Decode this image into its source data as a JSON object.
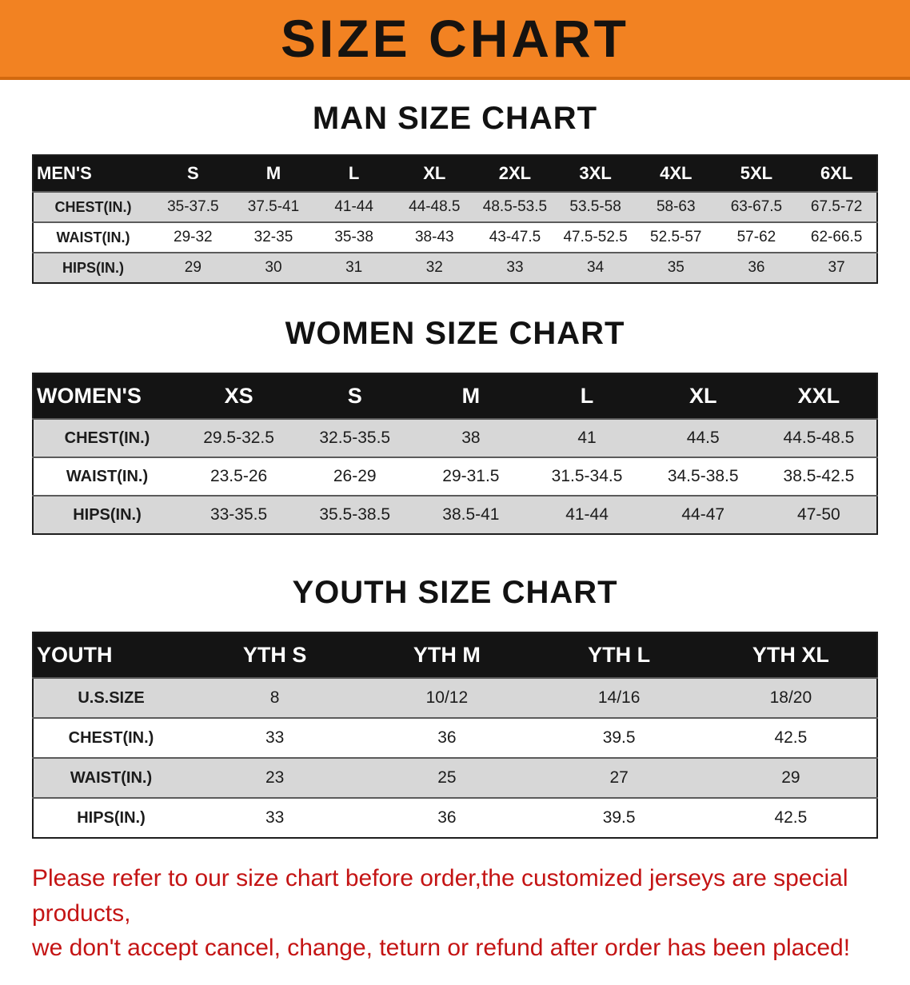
{
  "banner": {
    "title": "SIZE CHART"
  },
  "colors": {
    "banner_orange": "#f28222",
    "table_header_black": "#141414",
    "row_gray": "#d7d7d7",
    "note_red": "#c41414"
  },
  "men": {
    "heading": "MAN SIZE CHART",
    "header": [
      "MEN'S",
      "S",
      "M",
      "L",
      "XL",
      "2XL",
      "3XL",
      "4XL",
      "5XL",
      "6XL"
    ],
    "rows": [
      {
        "label": "CHEST(IN.)",
        "values": [
          "35-37.5",
          "37.5-41",
          "41-44",
          "44-48.5",
          "48.5-53.5",
          "53.5-58",
          "58-63",
          "63-67.5",
          "67.5-72"
        ]
      },
      {
        "label": "WAIST(IN.)",
        "values": [
          "29-32",
          "32-35",
          "35-38",
          "38-43",
          "43-47.5",
          "47.5-52.5",
          "52.5-57",
          "57-62",
          "62-66.5"
        ]
      },
      {
        "label": "HIPS(IN.)",
        "values": [
          "29",
          "30",
          "31",
          "32",
          "33",
          "34",
          "35",
          "36",
          "37"
        ]
      }
    ]
  },
  "women": {
    "heading": "WOMEN SIZE CHART",
    "header": [
      "WOMEN'S",
      "XS",
      "S",
      "M",
      "L",
      "XL",
      "XXL"
    ],
    "rows": [
      {
        "label": "CHEST(IN.)",
        "values": [
          "29.5-32.5",
          "32.5-35.5",
          "38",
          "41",
          "44.5",
          "44.5-48.5"
        ]
      },
      {
        "label": "WAIST(IN.)",
        "values": [
          "23.5-26",
          "26-29",
          "29-31.5",
          "31.5-34.5",
          "34.5-38.5",
          "38.5-42.5"
        ]
      },
      {
        "label": "HIPS(IN.)",
        "values": [
          "33-35.5",
          "35.5-38.5",
          "38.5-41",
          "41-44",
          "44-47",
          "47-50"
        ]
      }
    ]
  },
  "youth": {
    "heading": "YOUTH SIZE CHART",
    "header": [
      "YOUTH",
      "YTH S",
      "YTH M",
      "YTH L",
      "YTH XL"
    ],
    "rows": [
      {
        "label": "U.S.SIZE",
        "values": [
          "8",
          "10/12",
          "14/16",
          "18/20"
        ]
      },
      {
        "label": "CHEST(IN.)",
        "values": [
          "33",
          "36",
          "39.5",
          "42.5"
        ]
      },
      {
        "label": "WAIST(IN.)",
        "values": [
          "23",
          "25",
          "27",
          "29"
        ]
      },
      {
        "label": "HIPS(IN.)",
        "values": [
          "33",
          "36",
          "39.5",
          "42.5"
        ]
      }
    ]
  },
  "footer": {
    "line1": "Please refer to our size chart before order,the customized jerseys are special products,",
    "line2": "we don't accept cancel, change, teturn or refund after order has been placed!"
  }
}
